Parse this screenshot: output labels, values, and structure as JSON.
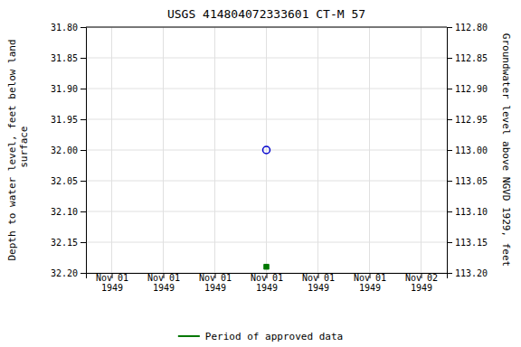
{
  "chart_data": {
    "type": "scatter",
    "title": "USGS 414804072333601  CT-M     57",
    "y_label": "Depth to water level, feet below land\n surface",
    "y2_label": "Groundwater level above NGVD 1929, feet",
    "categories": [
      "Nov 01\n1949",
      "Nov 01\n1949",
      "Nov 01\n1949",
      "Nov 01\n1949",
      "Nov 01\n1949",
      "Nov 01\n1949",
      "Nov 02\n1949"
    ],
    "series": [
      {
        "color": "#0000cc",
        "marker": "open_circle",
        "values": [
          null,
          null,
          null,
          32.0,
          null,
          null,
          null
        ]
      },
      {
        "name": "Period of approved data",
        "color": "#007700",
        "marker": "square",
        "values": [
          null,
          null,
          null,
          32.19,
          null,
          null,
          null
        ]
      }
    ],
    "ylim": [
      32.2,
      31.8
    ],
    "yticks": [
      {
        "value": 31.8,
        "label": "31.80"
      },
      {
        "value": 31.85,
        "label": "31.85"
      },
      {
        "value": 31.9,
        "label": "31.90"
      },
      {
        "value": 31.95,
        "label": "31.95"
      },
      {
        "value": 32.0,
        "label": "32.00"
      },
      {
        "value": 32.05,
        "label": "32.05"
      },
      {
        "value": 32.1,
        "label": "32.10"
      },
      {
        "value": 32.15,
        "label": "32.15"
      },
      {
        "value": 32.2,
        "label": "32.20"
      }
    ],
    "y2lim": [
      113.2,
      112.8
    ],
    "y2ticks": [
      {
        "value": 112.8,
        "label": "112.80"
      },
      {
        "value": 112.85,
        "label": "112.85"
      },
      {
        "value": 112.9,
        "label": "112.90"
      },
      {
        "value": 112.95,
        "label": "112.95"
      },
      {
        "value": 113.0,
        "label": "113.00"
      },
      {
        "value": 113.05,
        "label": "113.05"
      },
      {
        "value": 113.1,
        "label": "113.10"
      },
      {
        "value": 113.15,
        "label": "113.15"
      },
      {
        "value": 113.2,
        "label": "113.20"
      }
    ],
    "grid": true,
    "legend": "bottom"
  }
}
